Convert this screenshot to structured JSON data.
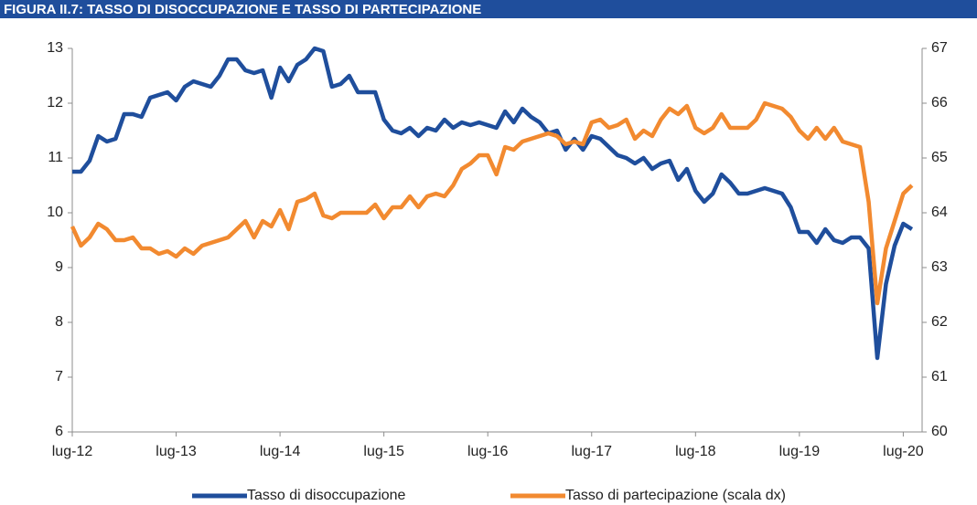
{
  "chart_data": {
    "type": "line",
    "title": "FIGURA II.7: TASSO DI DISOCCUPAZIONE E TASSO DI PARTECIPAZIONE",
    "categories": [
      "lug-12",
      null,
      null,
      null,
      null,
      null,
      null,
      null,
      null,
      null,
      null,
      null,
      "lug-13",
      null,
      null,
      null,
      null,
      null,
      null,
      null,
      null,
      null,
      null,
      null,
      "lug-14",
      null,
      null,
      null,
      null,
      null,
      null,
      null,
      null,
      null,
      null,
      null,
      "lug-15",
      null,
      null,
      null,
      null,
      null,
      null,
      null,
      null,
      null,
      null,
      null,
      "lug-16",
      null,
      null,
      null,
      null,
      null,
      null,
      null,
      null,
      null,
      null,
      null,
      "lug-17",
      null,
      null,
      null,
      null,
      null,
      null,
      null,
      null,
      null,
      null,
      null,
      "lug-18",
      null,
      null,
      null,
      null,
      null,
      null,
      null,
      null,
      null,
      null,
      null,
      "lug-19",
      null,
      null,
      null,
      null,
      null,
      null,
      null,
      null,
      null,
      null,
      null,
      "lug-20",
      null
    ],
    "series": [
      {
        "name": "Tasso di disoccupazione",
        "color": "#1f4e9c",
        "axis": "y",
        "values": [
          10.75,
          10.75,
          10.95,
          11.4,
          11.3,
          11.35,
          11.8,
          11.8,
          11.75,
          12.1,
          12.15,
          12.2,
          12.05,
          12.3,
          12.4,
          12.35,
          12.3,
          12.5,
          12.8,
          12.8,
          12.6,
          12.55,
          12.6,
          12.1,
          12.65,
          12.4,
          12.7,
          12.8,
          13.0,
          12.95,
          12.3,
          12.35,
          12.5,
          12.2,
          12.2,
          12.2,
          11.7,
          11.5,
          11.45,
          11.55,
          11.4,
          11.55,
          11.5,
          11.7,
          11.55,
          11.65,
          11.6,
          11.65,
          11.6,
          11.55,
          11.85,
          11.65,
          11.9,
          11.75,
          11.65,
          11.45,
          11.5,
          11.15,
          11.35,
          11.15,
          11.4,
          11.35,
          11.2,
          11.05,
          11.0,
          10.9,
          11.0,
          10.8,
          10.9,
          10.95,
          10.6,
          10.8,
          10.4,
          10.2,
          10.35,
          10.7,
          10.55,
          10.35,
          10.35,
          10.4,
          10.45,
          10.4,
          10.35,
          10.1,
          9.65,
          9.65,
          9.45,
          9.7,
          9.5,
          9.45,
          9.55,
          9.55,
          9.35,
          7.35,
          8.7,
          9.4,
          9.8,
          9.7
        ]
      },
      {
        "name": "Tasso di partecipazione (scala dx)",
        "color": "#f28a30",
        "axis": "y2",
        "values": [
          63.75,
          63.4,
          63.55,
          63.8,
          63.7,
          63.5,
          63.5,
          63.55,
          63.35,
          63.35,
          63.25,
          63.3,
          63.2,
          63.35,
          63.25,
          63.4,
          63.45,
          63.5,
          63.55,
          63.7,
          63.85,
          63.55,
          63.85,
          63.75,
          64.05,
          63.7,
          64.2,
          64.25,
          64.35,
          63.95,
          63.9,
          64.0,
          64.0,
          64.0,
          64.0,
          64.15,
          63.9,
          64.1,
          64.1,
          64.3,
          64.1,
          64.3,
          64.35,
          64.3,
          64.5,
          64.8,
          64.9,
          65.05,
          65.05,
          64.7,
          65.2,
          65.15,
          65.3,
          65.35,
          65.4,
          65.45,
          65.4,
          65.25,
          65.3,
          65.25,
          65.65,
          65.7,
          65.55,
          65.6,
          65.7,
          65.35,
          65.5,
          65.4,
          65.7,
          65.9,
          65.8,
          65.95,
          65.55,
          65.45,
          65.55,
          65.8,
          65.55,
          65.55,
          65.55,
          65.7,
          66.0,
          65.95,
          65.9,
          65.75,
          65.5,
          65.35,
          65.55,
          65.35,
          65.55,
          65.3,
          65.25,
          65.2,
          64.2,
          62.35,
          63.35,
          63.85,
          64.35,
          64.5
        ]
      }
    ],
    "ylim": [
      6,
      13
    ],
    "yticks": [
      6,
      7,
      8,
      9,
      10,
      11,
      12,
      13
    ],
    "y2lim": [
      60,
      67
    ],
    "y2ticks": [
      60,
      61,
      62,
      63,
      64,
      65,
      66,
      67
    ],
    "grid": false,
    "legend": "bottom"
  }
}
